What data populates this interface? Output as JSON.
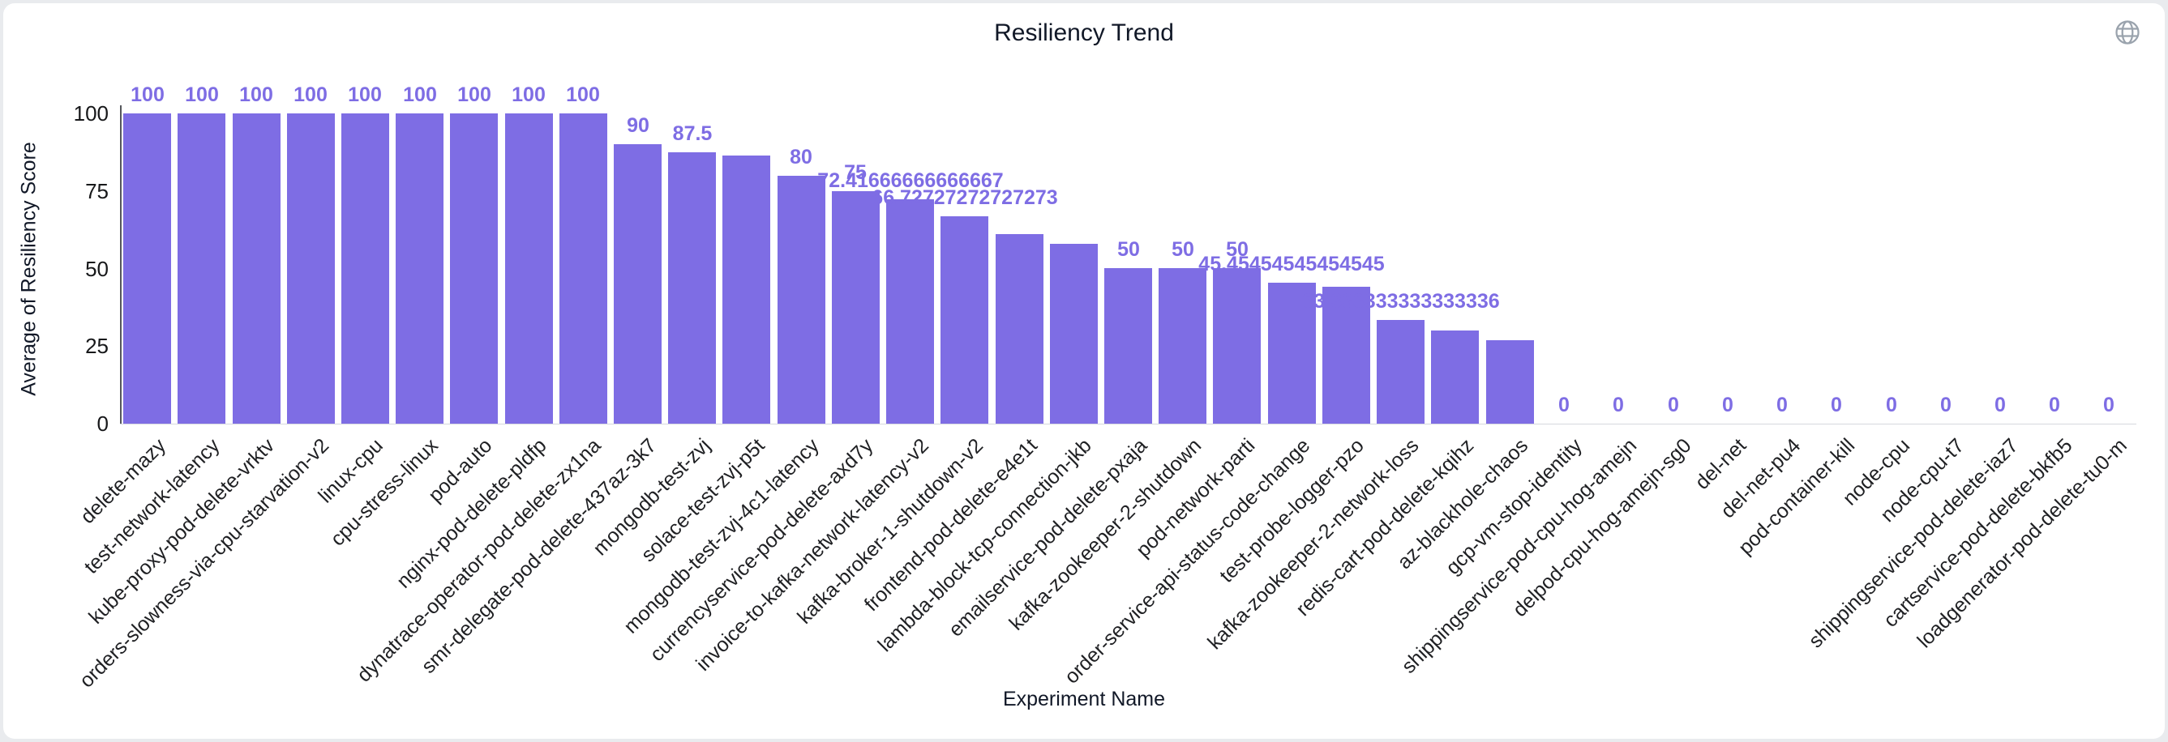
{
  "page": {
    "background_color": "#e9ebee",
    "card_background_color": "#ffffff"
  },
  "header": {
    "globe_icon": "globe-icon"
  },
  "chart_data": {
    "type": "bar",
    "title": "Resiliency Trend",
    "xlabel": "Experiment Name",
    "ylabel": "Average of Resiliency Score",
    "ylim": [
      0,
      100
    ],
    "yticks": [
      0,
      25,
      50,
      75,
      100
    ],
    "grid": "off",
    "legend": "none",
    "bar_color": "#7e6de4",
    "value_label_color": "#7e6de4",
    "categories": [
      "delete-mazy",
      "test-network-latency",
      "kube-proxy-pod-delete-vrktv",
      "orders-slowness-via-cpu-starvation-v2",
      "linux-cpu",
      "cpu-stress-linux",
      "pod-auto",
      "nginx-pod-delete-pldfp",
      "dynatrace-operator-pod-delete-zx1na",
      "smr-delegate-pod-delete-437az-3k7",
      "mongodb-test-zvj",
      "solace-test-zvj-p5t",
      "mongodb-test-zvj-4c1-latency",
      "currencyservice-pod-delete-axd7y",
      "invoice-to-kafka-network-latency-v2",
      "kafka-broker-1-shutdown-v2",
      "frontend-pod-delete-e4e1t",
      "lambda-block-tcp-connection-jkb",
      "emailservice-pod-delete-pxaja",
      "kafka-zookeeper-2-shutdown",
      "pod-network-parti",
      "order-service-api-status-code-change",
      "test-probe-logger-pzo",
      "kafka-zookeeper-2-network-loss",
      "redis-cart-pod-delete-kqihz",
      "az-blackhole-chaos",
      "gcp-vm-stop-identity",
      "shippingservice-pod-cpu-hog-amejn",
      "delpod-cpu-hog-amejn-sg0",
      "del-net",
      "del-net-pu4",
      "pod-container-kill",
      "node-cpu",
      "node-cpu-t7",
      "shippingservice-pod-delete-iaz7",
      "cartservice-pod-delete-bkfb5",
      "loadgenerator-pod-delete-tu0-m"
    ],
    "values": [
      100,
      100,
      100,
      100,
      100,
      100,
      100,
      100,
      100,
      90,
      87.5,
      86.5,
      80,
      75,
      72.41666666666667,
      66.72727272727273,
      61,
      58,
      50,
      50,
      50,
      45.45454545454545,
      44,
      33.333333333333336,
      30,
      27,
      0,
      0,
      0,
      0,
      0,
      0,
      0,
      0,
      0,
      0,
      0
    ],
    "value_labels": [
      "100",
      "100",
      "100",
      "100",
      "100",
      "100",
      "100",
      "100",
      "100",
      "90",
      "87.5",
      "",
      "80",
      "75",
      "72.41666666666667",
      "66.72727272727273",
      "",
      "",
      "50",
      "50",
      "50",
      "45.45454545454545",
      "",
      "33.333333333333336",
      "",
      "",
      "0",
      "0",
      "0",
      "0",
      "0",
      "0",
      "0",
      "0",
      "0",
      "0",
      "0"
    ]
  }
}
